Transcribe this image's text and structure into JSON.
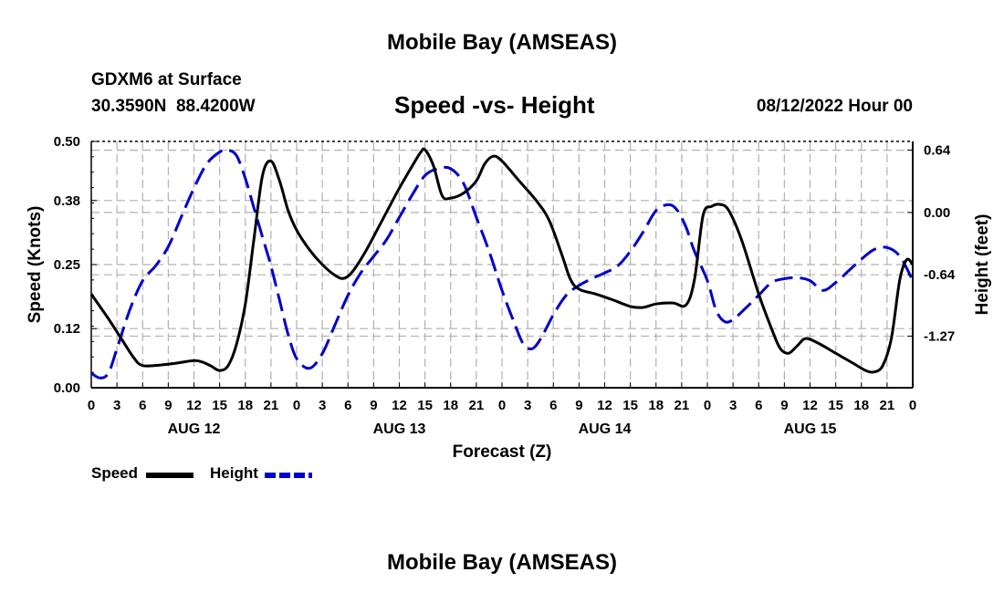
{
  "header": {
    "title": "Mobile Bay (AMSEAS)",
    "station": "GDXM6 at Surface",
    "coords": "30.3590N  88.4200W",
    "subtitle": "Speed -vs- Height",
    "datetime": "08/12/2022 Hour 00"
  },
  "footer": {
    "title": "Mobile Bay (AMSEAS)"
  },
  "legend": [
    {
      "label": "Speed",
      "color": "#000000"
    },
    {
      "label": "Height",
      "color": "#0000cc"
    }
  ],
  "chart_data": {
    "type": "line",
    "title": "Speed -vs- Height",
    "xlabel": "Forecast (Z)",
    "ylabel_left": "Speed (Knots)",
    "ylabel_right": "Height (feet)",
    "x_range_hours": [
      0,
      96
    ],
    "x_tick_labels": [
      "0",
      "3",
      "6",
      "9",
      "12",
      "15",
      "18",
      "21",
      "0",
      "3",
      "6",
      "9",
      "12",
      "15",
      "18",
      "21",
      "0",
      "3",
      "6",
      "9",
      "12",
      "15",
      "18",
      "21",
      "0",
      "3",
      "6",
      "9",
      "12",
      "15",
      "18",
      "21",
      "0"
    ],
    "day_labels": [
      {
        "label": "AUG 12",
        "hour": 12
      },
      {
        "label": "AUG 13",
        "hour": 36
      },
      {
        "label": "AUG 14",
        "hour": 60
      },
      {
        "label": "AUG 15",
        "hour": 84
      }
    ],
    "y_left": {
      "range": [
        0.0,
        0.5
      ],
      "ticks": [
        0.0,
        0.12,
        0.25,
        0.38,
        0.5
      ],
      "tick_labels": [
        "0.00",
        "0.12",
        "0.25",
        "0.38",
        "0.50"
      ]
    },
    "y_right": {
      "range": [
        -1.8,
        0.73
      ],
      "ticks": [
        0.64,
        0.0,
        -0.64,
        -1.27
      ],
      "tick_labels": [
        "0.64",
        "0.00",
        "-0.64",
        "-1.27"
      ]
    },
    "grid": true,
    "series": [
      {
        "name": "Speed",
        "axis": "left",
        "color": "#000000",
        "style": "solid",
        "points": [
          [
            0,
            0.19
          ],
          [
            2,
            0.14
          ],
          [
            3.5,
            0.1
          ],
          [
            5,
            0.06
          ],
          [
            6,
            0.045
          ],
          [
            8,
            0.046
          ],
          [
            10,
            0.05
          ],
          [
            12,
            0.055
          ],
          [
            13,
            0.052
          ],
          [
            14,
            0.044
          ],
          [
            15,
            0.035
          ],
          [
            16,
            0.045
          ],
          [
            17,
            0.09
          ],
          [
            18,
            0.17
          ],
          [
            19,
            0.3
          ],
          [
            20,
            0.43
          ],
          [
            21,
            0.46
          ],
          [
            22,
            0.42
          ],
          [
            23,
            0.36
          ],
          [
            24,
            0.32
          ],
          [
            25.5,
            0.28
          ],
          [
            27,
            0.25
          ],
          [
            28.5,
            0.228
          ],
          [
            29.5,
            0.222
          ],
          [
            30.5,
            0.235
          ],
          [
            32,
            0.275
          ],
          [
            34,
            0.34
          ],
          [
            36,
            0.405
          ],
          [
            37.5,
            0.45
          ],
          [
            38.5,
            0.478
          ],
          [
            39,
            0.483
          ],
          [
            40,
            0.45
          ],
          [
            41,
            0.39
          ],
          [
            42,
            0.385
          ],
          [
            43.5,
            0.395
          ],
          [
            45,
            0.42
          ],
          [
            46,
            0.455
          ],
          [
            47,
            0.47
          ],
          [
            48,
            0.46
          ],
          [
            50,
            0.42
          ],
          [
            52,
            0.38
          ],
          [
            53.5,
            0.34
          ],
          [
            55,
            0.27
          ],
          [
            56,
            0.22
          ],
          [
            57,
            0.2
          ],
          [
            59,
            0.19
          ],
          [
            61,
            0.178
          ],
          [
            63,
            0.165
          ],
          [
            64.5,
            0.163
          ],
          [
            66,
            0.17
          ],
          [
            68,
            0.172
          ],
          [
            69.5,
            0.168
          ],
          [
            70.5,
            0.22
          ],
          [
            71.5,
            0.35
          ],
          [
            72.5,
            0.368
          ],
          [
            73.5,
            0.372
          ],
          [
            74.5,
            0.36
          ],
          [
            76,
            0.3
          ],
          [
            78,
            0.19
          ],
          [
            79.5,
            0.12
          ],
          [
            80.5,
            0.08
          ],
          [
            81.5,
            0.07
          ],
          [
            82.5,
            0.085
          ],
          [
            83.5,
            0.1
          ],
          [
            85,
            0.09
          ],
          [
            87,
            0.07
          ],
          [
            89,
            0.05
          ],
          [
            90.5,
            0.035
          ],
          [
            91.5,
            0.032
          ],
          [
            92.5,
            0.045
          ],
          [
            93.5,
            0.1
          ],
          [
            94.5,
            0.22
          ],
          [
            95.3,
            0.26
          ],
          [
            96,
            0.25
          ]
        ]
      },
      {
        "name": "Height",
        "axis": "right",
        "color": "#0000cc",
        "style": "dashed",
        "points": [
          [
            0,
            -1.65
          ],
          [
            1,
            -1.7
          ],
          [
            2,
            -1.65
          ],
          [
            3,
            -1.4
          ],
          [
            4.5,
            -1.0
          ],
          [
            6,
            -0.7
          ],
          [
            7.5,
            -0.55
          ],
          [
            9,
            -0.35
          ],
          [
            10.5,
            -0.05
          ],
          [
            12,
            0.25
          ],
          [
            13.5,
            0.5
          ],
          [
            15,
            0.62
          ],
          [
            16,
            0.64
          ],
          [
            17,
            0.58
          ],
          [
            18,
            0.35
          ],
          [
            19,
            0.05
          ],
          [
            20,
            -0.25
          ],
          [
            21,
            -0.55
          ],
          [
            22,
            -0.9
          ],
          [
            23,
            -1.25
          ],
          [
            24,
            -1.5
          ],
          [
            25.5,
            -1.6
          ],
          [
            27,
            -1.45
          ],
          [
            28.5,
            -1.15
          ],
          [
            30,
            -0.85
          ],
          [
            31.5,
            -0.62
          ],
          [
            33,
            -0.45
          ],
          [
            34.5,
            -0.28
          ],
          [
            36,
            -0.05
          ],
          [
            37.5,
            0.18
          ],
          [
            39,
            0.38
          ],
          [
            40.5,
            0.45
          ],
          [
            42,
            0.45
          ],
          [
            43.5,
            0.3
          ],
          [
            45,
            -0.05
          ],
          [
            46.5,
            -0.4
          ],
          [
            48,
            -0.8
          ],
          [
            49.5,
            -1.15
          ],
          [
            50.5,
            -1.35
          ],
          [
            51.5,
            -1.4
          ],
          [
            52.5,
            -1.3
          ],
          [
            54,
            -1.05
          ],
          [
            55.5,
            -0.85
          ],
          [
            57,
            -0.75
          ],
          [
            58.5,
            -0.68
          ],
          [
            60,
            -0.62
          ],
          [
            61.5,
            -0.55
          ],
          [
            63,
            -0.4
          ],
          [
            64.5,
            -0.2
          ],
          [
            66,
            0.02
          ],
          [
            67.5,
            0.08
          ],
          [
            68.5,
            0.02
          ],
          [
            69.5,
            -0.15
          ],
          [
            70.5,
            -0.4
          ],
          [
            72,
            -0.7
          ],
          [
            73,
            -1.0
          ],
          [
            74,
            -1.12
          ],
          [
            75,
            -1.1
          ],
          [
            76.5,
            -0.98
          ],
          [
            78,
            -0.85
          ],
          [
            79.5,
            -0.72
          ],
          [
            81,
            -0.68
          ],
          [
            82.5,
            -0.67
          ],
          [
            84,
            -0.7
          ],
          [
            85.5,
            -0.8
          ],
          [
            87,
            -0.72
          ],
          [
            88.5,
            -0.6
          ],
          [
            90,
            -0.48
          ],
          [
            91.5,
            -0.38
          ],
          [
            93,
            -0.36
          ],
          [
            94.5,
            -0.45
          ],
          [
            96,
            -0.7
          ]
        ]
      }
    ]
  }
}
